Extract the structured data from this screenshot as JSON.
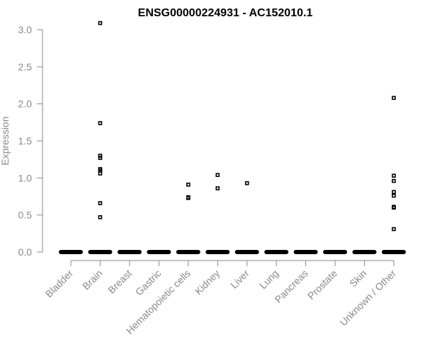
{
  "chart_data": {
    "type": "scatter",
    "title": "ENSG00000224931 - AC152010.1",
    "ylabel": "Expression",
    "xlabel": "",
    "ylim": [
      0,
      3.15
    ],
    "yticks": [
      "0.0",
      "0.5",
      "1.0",
      "1.5",
      "2.0",
      "2.5",
      "3.0"
    ],
    "ytick_values": [
      0,
      0.5,
      1.0,
      1.5,
      2.0,
      2.5,
      3.0
    ],
    "categories": [
      "Bladder",
      "Brain",
      "Breast",
      "Gastric",
      "Hematopoietic cells",
      "Kidney",
      "Liver",
      "Lung",
      "Pancreas",
      "Prostate",
      "Skin",
      "Unknown / Other"
    ],
    "grid": false,
    "series": [
      {
        "category": "Bladder",
        "zero_cluster": true,
        "values": []
      },
      {
        "category": "Brain",
        "zero_cluster": true,
        "values": [
          3.09,
          1.74,
          1.3,
          1.27,
          1.12,
          1.1,
          1.06,
          0.66,
          0.47
        ]
      },
      {
        "category": "Breast",
        "zero_cluster": true,
        "values": []
      },
      {
        "category": "Gastric",
        "zero_cluster": true,
        "values": []
      },
      {
        "category": "Hematopoietic cells",
        "zero_cluster": true,
        "values": [
          0.91,
          0.74,
          0.73
        ]
      },
      {
        "category": "Kidney",
        "zero_cluster": true,
        "values": [
          1.04,
          0.86
        ]
      },
      {
        "category": "Liver",
        "zero_cluster": true,
        "values": [
          0.93
        ]
      },
      {
        "category": "Lung",
        "zero_cluster": true,
        "values": []
      },
      {
        "category": "Pancreas",
        "zero_cluster": true,
        "values": []
      },
      {
        "category": "Prostate",
        "zero_cluster": true,
        "values": []
      },
      {
        "category": "Skin",
        "zero_cluster": true,
        "values": []
      },
      {
        "category": "Unknown / Other",
        "zero_cluster": true,
        "values": [
          2.08,
          1.03,
          0.96,
          0.81,
          0.76,
          0.61,
          0.6,
          0.31
        ]
      }
    ]
  }
}
